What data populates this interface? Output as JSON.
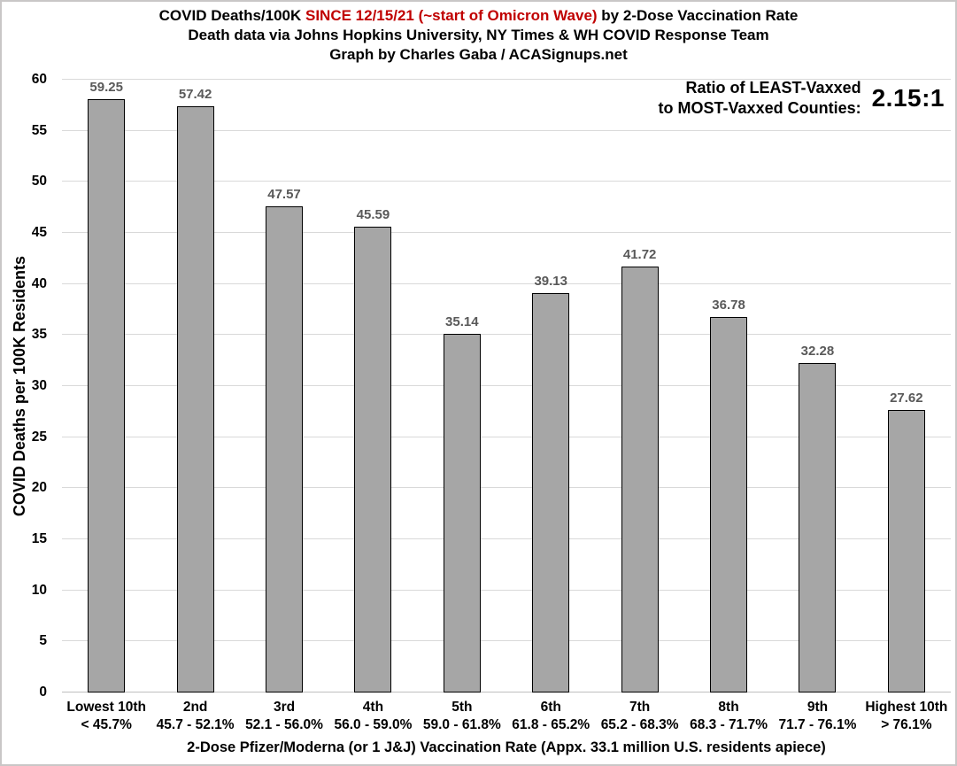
{
  "title": {
    "line1_prefix": "COVID Deaths/100K ",
    "line1_red": "SINCE 12/15/21 (~start of Omicron Wave)",
    "line1_suffix": " by 2-Dose Vaccination Rate",
    "line2": "Death data via Johns Hopkins University, NY Times & WH COVID Response Team",
    "line3": "Graph by Charles Gaba / ACASignups.net"
  },
  "annotation": {
    "label_line1": "Ratio of LEAST-Vaxxed",
    "label_line2": "to MOST-Vaxxed Counties:",
    "value": "2.15:1"
  },
  "colors": {
    "title_red": "#c00000",
    "bar_fill": "#a6a6a6",
    "bar_border": "#000000",
    "value_label": "#595959",
    "gridline": "#d9d9d9",
    "axis_line": "#bfbfbf"
  },
  "chart_data": {
    "type": "bar",
    "title": "COVID Deaths/100K SINCE 12/15/21 (~start of Omicron Wave) by 2-Dose Vaccination Rate",
    "subtitle1": "Death data via Johns Hopkins University, NY Times & WH COVID Response Team",
    "subtitle2": "Graph by Charles Gaba / ACASignups.net",
    "categories": [
      "Lowest 10th",
      "2nd",
      "3rd",
      "4th",
      "5th",
      "6th",
      "7th",
      "8th",
      "9th",
      "Highest 10th"
    ],
    "category_ranges": [
      "< 45.7%",
      "45.7 - 52.1%",
      "52.1 - 56.0%",
      "56.0 - 59.0%",
      "59.0 - 61.8%",
      "61.8 - 65.2%",
      "65.2 - 68.3%",
      "68.3 - 71.7%",
      "71.7 - 76.1%",
      "> 76.1%"
    ],
    "values": [
      59.25,
      57.42,
      47.57,
      45.59,
      35.14,
      39.13,
      41.72,
      36.78,
      32.28,
      27.62
    ],
    "xlabel": "2-Dose Pfizer/Moderna (or 1 J&J) Vaccination Rate (Appx. 33.1 million U.S. residents apiece)",
    "ylabel": "COVID Deaths per 100K Residents",
    "ylim": [
      0,
      60
    ],
    "ytick_step": 5,
    "grid": true,
    "legend": "none",
    "annotation": "Ratio of LEAST-Vaxxed to MOST-Vaxxed Counties: 2.15:1"
  }
}
